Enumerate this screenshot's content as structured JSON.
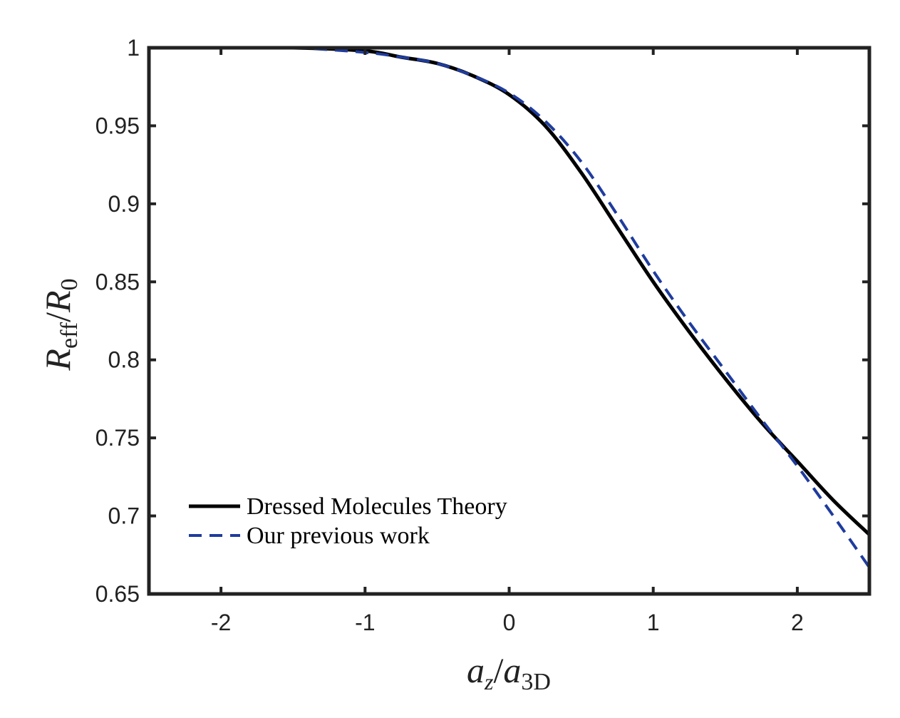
{
  "chart_data": {
    "type": "line",
    "title": "",
    "xlabel": {
      "main": "a",
      "main_sub": "z",
      "sep": "/",
      "denom": "a",
      "denom_sub": "3D"
    },
    "ylabel": {
      "main": "R",
      "main_sub": "eff",
      "sep": "/",
      "denom": "R",
      "denom_sub": "0"
    },
    "xlim": [
      -2.5,
      2.5
    ],
    "ylim": [
      0.65,
      1.0
    ],
    "xticks": [
      -2,
      -1,
      0,
      1,
      2
    ],
    "xtick_labels": [
      "-2",
      "-1",
      "0",
      "1",
      "2"
    ],
    "yticks": [
      0.65,
      0.7,
      0.75,
      0.8,
      0.85,
      0.9,
      0.95,
      1.0
    ],
    "ytick_labels": [
      "0.65",
      "0.7",
      "0.75",
      "0.8",
      "0.85",
      "0.9",
      "0.95",
      "1"
    ],
    "grid": false,
    "legend_position": "bottom-left",
    "series": [
      {
        "name": "Dressed Molecules Theory",
        "color": "#000000",
        "style": "solid",
        "x": [
          -2.5,
          -2.0,
          -1.5,
          -1.0,
          -0.75,
          -0.5,
          -0.25,
          0.0,
          0.25,
          0.5,
          0.75,
          1.0,
          1.25,
          1.5,
          1.75,
          2.0,
          2.25,
          2.5
        ],
        "y": [
          1.0,
          1.0,
          1.0,
          0.998,
          0.994,
          0.99,
          0.982,
          0.97,
          0.95,
          0.92,
          0.885,
          0.85,
          0.818,
          0.788,
          0.76,
          0.735,
          0.71,
          0.688
        ]
      },
      {
        "name": "Our previous work",
        "color": "#1f3c9e",
        "style": "dashed",
        "x": [
          -2.5,
          -2.0,
          -1.5,
          -1.0,
          -0.75,
          -0.5,
          -0.25,
          0.0,
          0.25,
          0.5,
          0.75,
          1.0,
          1.25,
          1.5,
          1.75,
          2.0,
          2.25,
          2.5
        ],
        "y": [
          1.0,
          1.0,
          1.0,
          0.997,
          0.994,
          0.99,
          0.982,
          0.971,
          0.953,
          0.927,
          0.893,
          0.857,
          0.824,
          0.793,
          0.762,
          0.732,
          0.7,
          0.667
        ]
      }
    ]
  }
}
